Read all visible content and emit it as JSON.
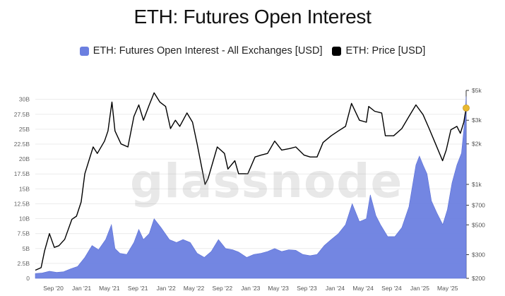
{
  "title": "ETH: Futures Open Interest",
  "watermark": "glassnode",
  "legend": [
    {
      "label": "ETH: Futures Open Interest - All Exchanges [USD]",
      "color": "#6b7fe0"
    },
    {
      "label": "ETH: Price [USD]",
      "color": "#000000"
    }
  ],
  "colors": {
    "oi_fill": "#6b7fe0",
    "price_line": "#000000",
    "marker": "#e8b830",
    "grid": "#ececec"
  },
  "chart_data": {
    "type": "area",
    "x_ticks": [
      "Sep '20",
      "Jan '21",
      "May '21",
      "Sep '21",
      "Jan '22",
      "May '22",
      "Sep '22",
      "Jan '23",
      "May '23",
      "Sep '23",
      "Jan '24",
      "May '24",
      "Sep '24",
      "Jan '25",
      "May '25"
    ],
    "y_left_ticks": [
      "0",
      "2.5B",
      "5B",
      "7.5B",
      "10B",
      "12.5B",
      "15B",
      "17.5B",
      "20B",
      "22.5B",
      "25B",
      "27.5B",
      "30B"
    ],
    "y_left_range": [
      0,
      31500000000
    ],
    "y_right_ticks": [
      "$200",
      "$300",
      "$500",
      "$700",
      "$1k",
      "$2k",
      "$3k",
      "$5k"
    ],
    "y_right_values": [
      200,
      300,
      500,
      700,
      1000,
      2000,
      3000,
      5000
    ],
    "y_right_range": [
      200,
      5000
    ],
    "y_right_scale": "log",
    "x_range": [
      "2020-06-15",
      "2025-07-20"
    ],
    "grid": true,
    "legend_position": "top-center",
    "series": [
      {
        "name": "ETH: Futures Open Interest - All Exchanges [USD]",
        "axis": "left",
        "points": [
          [
            "2020-06-15",
            0.8
          ],
          [
            "2020-07-15",
            0.9
          ],
          [
            "2020-08-15",
            1.2
          ],
          [
            "2020-09-15",
            1.0
          ],
          [
            "2020-10-15",
            1.1
          ],
          [
            "2020-11-15",
            1.6
          ],
          [
            "2020-12-15",
            2.0
          ],
          [
            "2021-01-15",
            3.5
          ],
          [
            "2021-02-15",
            5.5
          ],
          [
            "2021-03-15",
            4.8
          ],
          [
            "2021-04-15",
            6.5
          ],
          [
            "2021-05-10",
            9.0
          ],
          [
            "2021-05-25",
            5.0
          ],
          [
            "2021-06-15",
            4.2
          ],
          [
            "2021-07-15",
            4.0
          ],
          [
            "2021-08-15",
            6.0
          ],
          [
            "2021-09-05",
            8.2
          ],
          [
            "2021-09-25",
            6.5
          ],
          [
            "2021-10-20",
            7.5
          ],
          [
            "2021-11-10",
            10.0
          ],
          [
            "2021-12-10",
            8.5
          ],
          [
            "2022-01-15",
            6.5
          ],
          [
            "2022-02-15",
            6.0
          ],
          [
            "2022-03-15",
            6.5
          ],
          [
            "2022-04-15",
            6.0
          ],
          [
            "2022-05-15",
            4.2
          ],
          [
            "2022-06-15",
            3.5
          ],
          [
            "2022-07-15",
            4.5
          ],
          [
            "2022-08-15",
            6.5
          ],
          [
            "2022-09-15",
            5.0
          ],
          [
            "2022-10-15",
            4.8
          ],
          [
            "2022-11-10",
            4.4
          ],
          [
            "2022-12-15",
            3.5
          ],
          [
            "2023-01-15",
            4.0
          ],
          [
            "2023-02-15",
            4.2
          ],
          [
            "2023-03-15",
            4.5
          ],
          [
            "2023-04-15",
            5.0
          ],
          [
            "2023-05-15",
            4.5
          ],
          [
            "2023-06-15",
            4.8
          ],
          [
            "2023-07-15",
            4.7
          ],
          [
            "2023-08-15",
            4.0
          ],
          [
            "2023-09-15",
            3.8
          ],
          [
            "2023-10-15",
            4.0
          ],
          [
            "2023-11-15",
            5.5
          ],
          [
            "2023-12-15",
            6.5
          ],
          [
            "2024-01-15",
            7.5
          ],
          [
            "2024-02-15",
            9.0
          ],
          [
            "2024-03-15",
            12.5
          ],
          [
            "2024-04-15",
            9.5
          ],
          [
            "2024-05-15",
            10.0
          ],
          [
            "2024-06-01",
            14.0
          ],
          [
            "2024-06-25",
            10.5
          ],
          [
            "2024-07-15",
            9.0
          ],
          [
            "2024-08-15",
            7.0
          ],
          [
            "2024-09-15",
            7.0
          ],
          [
            "2024-10-15",
            8.5
          ],
          [
            "2024-11-15",
            12.0
          ],
          [
            "2024-12-15",
            19.0
          ],
          [
            "2024-12-30",
            20.5
          ],
          [
            "2025-01-15",
            19.0
          ],
          [
            "2025-02-01",
            17.5
          ],
          [
            "2025-02-20",
            13.0
          ],
          [
            "2025-03-15",
            11.0
          ],
          [
            "2025-04-10",
            9.0
          ],
          [
            "2025-04-30",
            11.5
          ],
          [
            "2025-05-20",
            16.0
          ],
          [
            "2025-06-10",
            19.0
          ],
          [
            "2025-06-30",
            21.0
          ],
          [
            "2025-07-15",
            27.0
          ],
          [
            "2025-07-20",
            30.5
          ]
        ]
      },
      {
        "name": "ETH: Price [USD]",
        "axis": "right",
        "points": [
          [
            "2020-06-15",
            230
          ],
          [
            "2020-07-10",
            240
          ],
          [
            "2020-07-25",
            320
          ],
          [
            "2020-08-15",
            430
          ],
          [
            "2020-09-05",
            340
          ],
          [
            "2020-09-25",
            350
          ],
          [
            "2020-10-20",
            390
          ],
          [
            "2020-11-20",
            550
          ],
          [
            "2020-12-10",
            580
          ],
          [
            "2020-12-30",
            740
          ],
          [
            "2021-01-15",
            1200
          ],
          [
            "2021-02-20",
            1900
          ],
          [
            "2021-03-10",
            1700
          ],
          [
            "2021-04-10",
            2100
          ],
          [
            "2021-04-25",
            2500
          ],
          [
            "2021-05-12",
            4100
          ],
          [
            "2021-05-25",
            2500
          ],
          [
            "2021-06-20",
            2000
          ],
          [
            "2021-07-20",
            1900
          ],
          [
            "2021-08-15",
            3200
          ],
          [
            "2021-09-05",
            3900
          ],
          [
            "2021-09-25",
            3000
          ],
          [
            "2021-10-20",
            3900
          ],
          [
            "2021-11-10",
            4800
          ],
          [
            "2021-12-05",
            4100
          ],
          [
            "2021-12-30",
            3800
          ],
          [
            "2022-01-20",
            2600
          ],
          [
            "2022-02-10",
            3000
          ],
          [
            "2022-03-01",
            2700
          ],
          [
            "2022-04-01",
            3400
          ],
          [
            "2022-04-25",
            2900
          ],
          [
            "2022-05-15",
            2000
          ],
          [
            "2022-06-18",
            1000
          ],
          [
            "2022-07-01",
            1100
          ],
          [
            "2022-08-10",
            1900
          ],
          [
            "2022-09-10",
            1700
          ],
          [
            "2022-09-25",
            1300
          ],
          [
            "2022-10-25",
            1500
          ],
          [
            "2022-11-10",
            1200
          ],
          [
            "2022-12-20",
            1200
          ],
          [
            "2023-01-20",
            1600
          ],
          [
            "2023-02-15",
            1650
          ],
          [
            "2023-03-15",
            1700
          ],
          [
            "2023-04-15",
            2100
          ],
          [
            "2023-05-15",
            1800
          ],
          [
            "2023-06-20",
            1850
          ],
          [
            "2023-07-15",
            1900
          ],
          [
            "2023-08-20",
            1650
          ],
          [
            "2023-09-15",
            1600
          ],
          [
            "2023-10-15",
            1600
          ],
          [
            "2023-11-10",
            2050
          ],
          [
            "2023-12-15",
            2300
          ],
          [
            "2024-01-15",
            2500
          ],
          [
            "2024-02-15",
            2700
          ],
          [
            "2024-03-12",
            4000
          ],
          [
            "2024-04-15",
            3000
          ],
          [
            "2024-05-15",
            2900
          ],
          [
            "2024-05-25",
            3800
          ],
          [
            "2024-06-20",
            3500
          ],
          [
            "2024-07-20",
            3400
          ],
          [
            "2024-08-05",
            2300
          ],
          [
            "2024-09-10",
            2300
          ],
          [
            "2024-10-15",
            2600
          ],
          [
            "2024-11-15",
            3200
          ],
          [
            "2024-12-15",
            3900
          ],
          [
            "2025-01-15",
            3300
          ],
          [
            "2025-02-10",
            2600
          ],
          [
            "2025-03-10",
            2000
          ],
          [
            "2025-04-09",
            1500
          ],
          [
            "2025-04-25",
            1800
          ],
          [
            "2025-05-15",
            2550
          ],
          [
            "2025-06-10",
            2700
          ],
          [
            "2025-06-25",
            2400
          ],
          [
            "2025-07-10",
            2900
          ],
          [
            "2025-07-20",
            3700
          ]
        ]
      }
    ]
  }
}
